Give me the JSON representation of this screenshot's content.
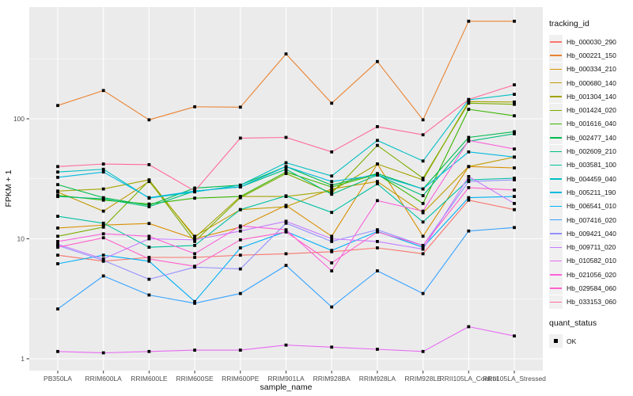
{
  "figure": {
    "panel_bg": "#EBEBEB",
    "grid_color": "#FFFFFF",
    "tick_color": "#333333",
    "tick_text_color": "#4D4D4D",
    "point_color": "#000000"
  },
  "axes": {
    "x_title": "sample_name",
    "y_title": "FPKM + 1"
  },
  "legend": {
    "tracking_title": "tracking_id",
    "quant_title": "quant_status",
    "quant_value": "OK"
  },
  "chart_data": {
    "type": "line",
    "title": "",
    "xlabel": "sample_name",
    "ylabel": "FPKM + 1",
    "y_scale": "log10",
    "ylim": [
      0.8,
      850
    ],
    "y_tick_values": [
      1,
      10,
      100
    ],
    "y_tick_labels": [
      "1",
      "10",
      "100"
    ],
    "y_minor_gridline_values": [
      3.162,
      31.62,
      316.2
    ],
    "grid": true,
    "legend_position": "right",
    "point_marker": {
      "shape": "square",
      "color": "#000000",
      "status_label": "OK"
    },
    "categories": [
      "PB350LA",
      "RRIM600LA",
      "RRIM600LE",
      "RRIM600SE",
      "RRIM600PE",
      "RRIM901LA",
      "RRIM928BA",
      "RRIM928LA",
      "RRIM928LE",
      "RRII105LA_Control",
      "RRII105LA_Stressed"
    ],
    "series": [
      {
        "name": "Hb_000030_290",
        "color": "#F8766D",
        "values": [
          7.3,
          6.5,
          7.0,
          7.0,
          7.3,
          7.5,
          7.8,
          8.4,
          7.5,
          21,
          17.5
        ]
      },
      {
        "name": "Hb_000221_150",
        "color": "#EA8331",
        "values": [
          129,
          172,
          98,
          126,
          125,
          347,
          135,
          300,
          98,
          650,
          650
        ]
      },
      {
        "name": "Hb_000334_210",
        "color": "#D89000",
        "values": [
          12.3,
          13.0,
          13.4,
          10.0,
          12.5,
          19.0,
          10.5,
          42,
          10.5,
          40,
          39
        ]
      },
      {
        "name": "Hb_000680_140",
        "color": "#C09B00",
        "values": [
          24.5,
          17.0,
          30.0,
          10.5,
          17.5,
          18.5,
          26.0,
          30.0,
          16.5,
          40,
          48
        ]
      },
      {
        "name": "Hb_001304_140",
        "color": "#A3A500",
        "values": [
          25.0,
          26.0,
          31.0,
          10.2,
          22.5,
          22.5,
          25.0,
          42.0,
          31.0,
          139,
          138
        ]
      },
      {
        "name": "Hb_001424_020",
        "color": "#7CAE00",
        "values": [
          10.5,
          12.5,
          30.5,
          9.5,
          22.0,
          35.0,
          24.0,
          60.0,
          32.0,
          135,
          132
        ]
      },
      {
        "name": "Hb_001616_040",
        "color": "#39B600",
        "values": [
          23.0,
          21.0,
          19.5,
          21.8,
          22.5,
          36.0,
          27.0,
          34.5,
          19.7,
          120,
          106
        ]
      },
      {
        "name": "Hb_002477_140",
        "color": "#00BB4E",
        "values": [
          28.3,
          22.0,
          19.0,
          26.5,
          28.0,
          40.0,
          28.0,
          35.0,
          26.0,
          70,
          78
        ]
      },
      {
        "name": "Hb_002609_210",
        "color": "#00BF7D",
        "values": [
          22.5,
          21.5,
          18.5,
          25.0,
          27.0,
          38.0,
          23.5,
          34.0,
          22.9,
          65,
          75
        ]
      },
      {
        "name": "Hb_003581_100",
        "color": "#00C1A3",
        "values": [
          15.4,
          13.5,
          8.5,
          8.8,
          17.5,
          22.8,
          16.6,
          28.7,
          13.8,
          31,
          32
        ]
      },
      {
        "name": "Hb_004459_040",
        "color": "#00BFC4",
        "values": [
          36.0,
          38.0,
          21.8,
          24.6,
          28.0,
          43.0,
          33.4,
          66.0,
          44.5,
          144,
          160
        ]
      },
      {
        "name": "Hb_005211_190",
        "color": "#00BAE0",
        "values": [
          32.5,
          36.0,
          22.0,
          25.0,
          27.0,
          40.0,
          30.0,
          34.0,
          26.0,
          53,
          48
        ]
      },
      {
        "name": "Hb_006541_010",
        "color": "#00B0F6",
        "values": [
          6.2,
          7.3,
          6.5,
          3.0,
          8.4,
          11.5,
          8.0,
          11.5,
          8.5,
          22,
          22.5
        ]
      },
      {
        "name": "Hb_007416_020",
        "color": "#35A2FF",
        "values": [
          2.6,
          4.9,
          3.4,
          2.9,
          3.5,
          6.0,
          2.7,
          5.4,
          3.5,
          11.6,
          12.4
        ]
      },
      {
        "name": "Hb_009421_040",
        "color": "#9590FF",
        "values": [
          8.8,
          6.6,
          4.6,
          5.8,
          5.6,
          13.5,
          9.5,
          11.9,
          8.8,
          30,
          31
        ]
      },
      {
        "name": "Hb_009711_020",
        "color": "#C77CFF",
        "values": [
          9.0,
          6.8,
          10.0,
          9.8,
          11.6,
          14.0,
          10.0,
          9.5,
          8.2,
          33,
          19.7
        ]
      },
      {
        "name": "Hb_010582_010",
        "color": "#E76BF3",
        "values": [
          1.15,
          1.12,
          1.15,
          1.18,
          1.18,
          1.3,
          1.25,
          1.2,
          1.15,
          1.85,
          1.55
        ]
      },
      {
        "name": "Hb_021056_020",
        "color": "#FA62DB",
        "values": [
          9.5,
          11.0,
          10.5,
          7.5,
          12.8,
          11.9,
          5.4,
          20.8,
          17.0,
          66,
          56
        ]
      },
      {
        "name": "Hb_029584_060",
        "color": "#FF61CC",
        "values": [
          8.5,
          10.2,
          6.8,
          5.9,
          9.8,
          11.4,
          6.3,
          11.4,
          8.8,
          26.7,
          25.5
        ]
      },
      {
        "name": "Hb_033153_060",
        "color": "#FF6A98",
        "values": [
          40,
          42,
          41.5,
          25,
          69,
          70,
          53,
          86,
          73.6,
          145,
          192
        ]
      }
    ]
  }
}
